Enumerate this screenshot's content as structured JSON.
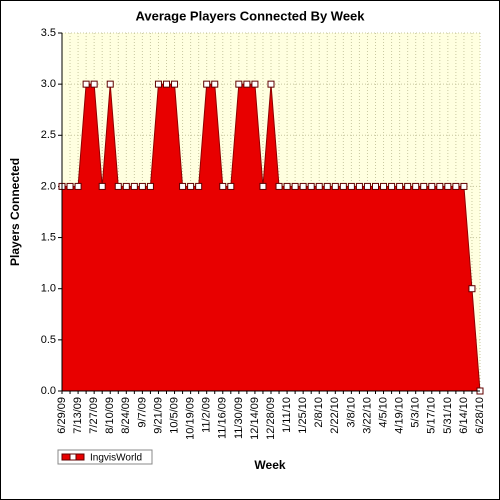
{
  "chart_data": {
    "type": "area",
    "title": "Average Players Connected By Week",
    "x_label": "Week",
    "y_label": "Players Connected",
    "categories": [
      "6/29/09",
      null,
      "7/13/09",
      null,
      "7/27/09",
      null,
      "8/10/09",
      null,
      "8/24/09",
      null,
      "9/7/09",
      null,
      "9/21/09",
      null,
      "10/5/09",
      null,
      "10/19/09",
      null,
      "11/2/09",
      null,
      "11/16/09",
      null,
      "11/30/09",
      null,
      "12/14/09",
      null,
      "12/28/09",
      null,
      "1/11/10",
      null,
      "1/25/10",
      null,
      "2/8/10",
      null,
      "2/22/10",
      null,
      "3/8/10",
      null,
      "3/22/10",
      null,
      "4/5/10",
      null,
      "4/19/10",
      null,
      "5/3/10",
      null,
      "5/17/10",
      null,
      "5/31/10",
      null,
      "6/14/10",
      null,
      "6/28/10"
    ],
    "series": [
      {
        "name": "IngvisWorld",
        "color": "#e80000",
        "values": [
          2,
          2,
          2,
          3,
          3,
          2,
          3,
          2,
          2,
          2,
          2,
          2,
          3,
          3,
          3,
          2,
          2,
          2,
          3,
          3,
          2,
          2,
          3,
          3,
          3,
          2,
          3,
          2,
          2,
          2,
          2,
          2,
          2,
          2,
          2,
          2,
          2,
          2,
          2,
          2,
          2,
          2,
          2,
          2,
          2,
          2,
          2,
          2,
          2,
          2,
          2,
          1,
          0
        ]
      }
    ],
    "ylim": [
      0,
      3.5
    ],
    "yticks": [
      {
        "value": 0,
        "label": "0.0"
      },
      {
        "value": 0.5,
        "label": "0.5"
      },
      {
        "value": 1,
        "label": "1.0"
      },
      {
        "value": 1.5,
        "label": "1.5"
      },
      {
        "value": 2,
        "label": "2.0"
      },
      {
        "value": 2.5,
        "label": "2.5"
      },
      {
        "value": 3,
        "label": "3.0"
      },
      {
        "value": 3.5,
        "label": "3.5"
      }
    ],
    "grid": true,
    "legend": "bottom-left"
  }
}
